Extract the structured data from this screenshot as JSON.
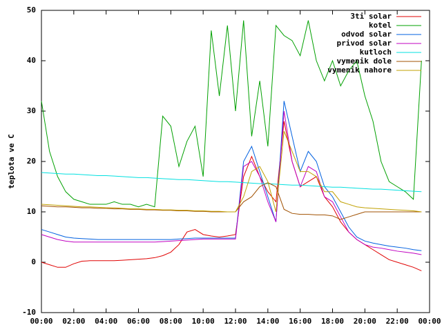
{
  "chart_data": {
    "type": "line",
    "ylabel": "teplota ve C",
    "x": [
      0,
      0.5,
      1,
      1.5,
      2,
      2.5,
      3,
      3.5,
      4,
      4.5,
      5,
      5.5,
      6,
      6.5,
      7,
      7.5,
      8,
      8.5,
      9,
      9.5,
      10,
      10.5,
      11,
      11.5,
      12,
      12.5,
      13,
      13.5,
      14,
      14.5,
      15,
      15.5,
      16,
      16.5,
      17,
      17.5,
      18,
      18.5,
      19,
      19.5,
      20,
      20.5,
      21,
      21.5,
      22,
      22.5,
      23,
      23.5
    ],
    "xlim": [
      0,
      24
    ],
    "xticks": [
      {
        "value": 0,
        "label": "00:00"
      },
      {
        "value": 2,
        "label": "02:00"
      },
      {
        "value": 4,
        "label": "04:00"
      },
      {
        "value": 6,
        "label": "06:00"
      },
      {
        "value": 8,
        "label": "08:00"
      },
      {
        "value": 10,
        "label": "10:00"
      },
      {
        "value": 12,
        "label": "12:00"
      },
      {
        "value": 14,
        "label": "14:00"
      },
      {
        "value": 16,
        "label": "16:00"
      },
      {
        "value": 18,
        "label": "18:00"
      },
      {
        "value": 20,
        "label": "20:00"
      },
      {
        "value": 22,
        "label": "22:00"
      },
      {
        "value": 24,
        "label": "00:00"
      }
    ],
    "ylim": [
      -10,
      50
    ],
    "yticks": [
      -10,
      0,
      10,
      20,
      30,
      40,
      50
    ],
    "legend": "top-right",
    "series": [
      {
        "name": "3ti solar",
        "color": "#e00000",
        "values": [
          0,
          -0.5,
          -1,
          -1,
          -0.3,
          0.2,
          0.3,
          0.3,
          0.3,
          0.3,
          0.4,
          0.5,
          0.6,
          0.7,
          0.9,
          1.3,
          2,
          3.5,
          6,
          6.5,
          5.5,
          5.2,
          5,
          5.2,
          5.5,
          17,
          21,
          17,
          14,
          12,
          28,
          20,
          15,
          16,
          17,
          13,
          11,
          8,
          6,
          4.5,
          3.5,
          2.5,
          1.5,
          0.5,
          0,
          -0.5,
          -1,
          -1.7
        ]
      },
      {
        "name": "kotel",
        "color": "#00a000",
        "values": [
          32,
          22,
          17,
          14,
          12.5,
          12,
          11.5,
          11.5,
          11.5,
          12,
          11.5,
          11.5,
          11,
          11.5,
          11,
          29,
          27,
          19,
          24,
          27,
          17,
          46,
          33,
          47,
          30,
          48,
          25,
          36,
          23,
          47,
          45,
          44,
          41,
          48,
          40,
          36,
          40,
          35,
          38,
          40,
          33,
          28,
          20,
          16,
          15,
          14,
          12.5,
          40
        ]
      },
      {
        "name": "odvod solar",
        "color": "#0060e0",
        "values": [
          6.5,
          6,
          5.5,
          5,
          4.8,
          4.7,
          4.6,
          4.5,
          4.5,
          4.5,
          4.5,
          4.5,
          4.5,
          4.5,
          4.5,
          4.5,
          4.5,
          4.6,
          4.7,
          4.8,
          4.8,
          4.8,
          4.8,
          4.8,
          4.8,
          20,
          23,
          18,
          13,
          8,
          32,
          25,
          18,
          22,
          20,
          15,
          13,
          10,
          7,
          5,
          4.2,
          3.8,
          3.5,
          3.2,
          3,
          2.8,
          2.5,
          2.3
        ]
      },
      {
        "name": "privod solar",
        "color": "#c000c0",
        "values": [
          5.5,
          5,
          4.5,
          4.2,
          4,
          4,
          4,
          4,
          4,
          4,
          4,
          4,
          4,
          4,
          4,
          4.1,
          4.2,
          4.3,
          4.4,
          4.5,
          4.6,
          4.6,
          4.6,
          4.6,
          4.6,
          19,
          20,
          17,
          12,
          8,
          30,
          20,
          15,
          19,
          18,
          13,
          12,
          9,
          6,
          4.5,
          3.5,
          3,
          2.8,
          2.5,
          2.2,
          2,
          1.8,
          1.5
        ]
      },
      {
        "name": "kutloch",
        "color": "#00e0e0",
        "values": [
          17.8,
          17.7,
          17.6,
          17.5,
          17.5,
          17.4,
          17.3,
          17.2,
          17.2,
          17.1,
          17,
          16.9,
          16.8,
          16.8,
          16.7,
          16.6,
          16.5,
          16.4,
          16.4,
          16.3,
          16.2,
          16.1,
          16,
          16,
          15.9,
          15.8,
          15.7,
          15.6,
          15.6,
          15.5,
          15.4,
          15.3,
          15.3,
          15.2,
          15.1,
          15,
          14.9,
          14.9,
          14.8,
          14.7,
          14.6,
          14.5,
          14.5,
          14.4,
          14.3,
          14.2,
          14.1,
          14
        ]
      },
      {
        "name": "vymenik dole",
        "color": "#a05000",
        "values": [
          11.2,
          11.1,
          11,
          11,
          10.9,
          10.8,
          10.8,
          10.7,
          10.7,
          10.6,
          10.6,
          10.5,
          10.5,
          10.4,
          10.4,
          10.3,
          10.3,
          10.2,
          10.2,
          10.1,
          10.1,
          10,
          10,
          10,
          10,
          12,
          13,
          15,
          15.8,
          15,
          10.5,
          9.7,
          9.5,
          9.5,
          9.4,
          9.4,
          9.2,
          8.5,
          9,
          9.5,
          10,
          10,
          10,
          10,
          10,
          10,
          10,
          10
        ]
      },
      {
        "name": "vymenik nahore",
        "color": "#c0a000",
        "values": [
          11.5,
          11.4,
          11.3,
          11.2,
          11.1,
          11,
          11,
          10.9,
          10.8,
          10.8,
          10.7,
          10.6,
          10.6,
          10.5,
          10.5,
          10.4,
          10.4,
          10.3,
          10.3,
          10.2,
          10.2,
          10.1,
          10.1,
          10,
          10,
          13,
          18,
          19,
          16,
          10,
          26,
          22,
          18,
          18,
          17,
          14,
          14,
          12,
          11.5,
          11,
          10.8,
          10.7,
          10.6,
          10.5,
          10.4,
          10.3,
          10.2,
          10
        ]
      }
    ]
  }
}
